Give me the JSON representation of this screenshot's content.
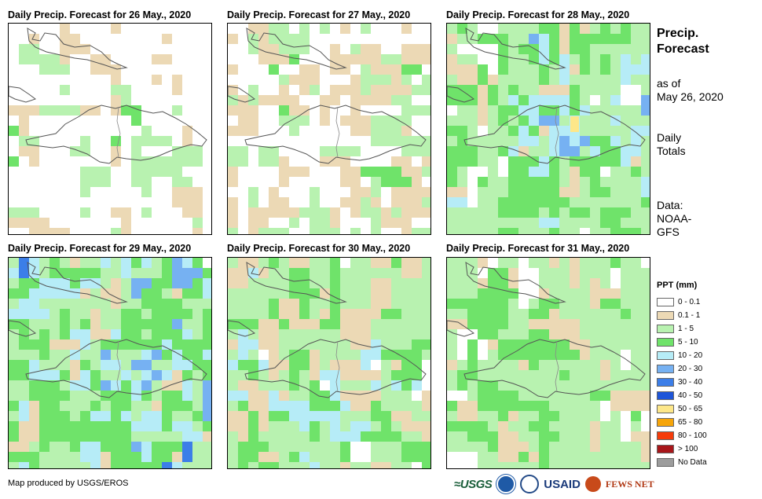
{
  "panels": [
    {
      "title": "Daily Precip. Forecast for 26 May., 2020",
      "seed": 11,
      "mix": {
        "white": 0.72,
        "tan": 0.14,
        "l5": 0.12,
        "l10": 0.02
      }
    },
    {
      "title": "Daily Precip. Forecast for 27 May., 2020",
      "seed": 23,
      "mix": {
        "white": 0.38,
        "tan": 0.3,
        "l5": 0.28,
        "l10": 0.04
      }
    },
    {
      "title": "Daily Precip. Forecast for 28 May., 2020",
      "seed": 37,
      "mix": {
        "white": 0.06,
        "tan": 0.06,
        "l5": 0.45,
        "l10": 0.35,
        "l20": 0.07,
        "l30": 0.01
      }
    },
    {
      "title": "Daily Precip. Forecast for 29 May., 2020",
      "seed": 41,
      "mix": {
        "white": 0.01,
        "tan": 0.08,
        "l5": 0.36,
        "l10": 0.28,
        "l20": 0.22,
        "l30": 0.04,
        "l40": 0.01
      }
    },
    {
      "title": "Daily Precip. Forecast for 30 May., 2020",
      "seed": 53,
      "mix": {
        "white": 0.04,
        "tan": 0.18,
        "l5": 0.46,
        "l10": 0.2,
        "l20": 0.12
      }
    },
    {
      "title": "Daily Precip. Forecast for 31 May., 2020",
      "seed": 67,
      "mix": {
        "white": 0.06,
        "tan": 0.16,
        "l5": 0.62,
        "l10": 0.16
      }
    }
  ],
  "side": {
    "title_line1": "Precip.",
    "title_line2": "Forecast",
    "asof_line1": "as of",
    "asof_line2": "May 26, 2020",
    "totals_line1": "Daily",
    "totals_line2": "Totals",
    "data_line1": "Data:",
    "data_line2": "NOAA-",
    "data_line3": "GFS"
  },
  "legend": {
    "title": "PPT (mm)",
    "items": [
      {
        "label": "0 - 0.1",
        "color": "#ffffff"
      },
      {
        "label": "0.1 - 1",
        "color": "#ecd9b5"
      },
      {
        "label": "1 - 5",
        "color": "#b8f2b0"
      },
      {
        "label": "5 - 10",
        "color": "#6fe36a"
      },
      {
        "label": "10 - 20",
        "color": "#b6ecf7"
      },
      {
        "label": "20 - 30",
        "color": "#76b1f2"
      },
      {
        "label": "30 - 40",
        "color": "#3c7ee8"
      },
      {
        "label": "40 - 50",
        "color": "#1e55d8"
      },
      {
        "label": "50 - 65",
        "color": "#fde789"
      },
      {
        "label": "65 - 80",
        "color": "#f6a50a"
      },
      {
        "label": "80 - 100",
        "color": "#f53c0b"
      },
      {
        "label": "> 100",
        "color": "#a8161a"
      },
      {
        "label": "No Data",
        "color": "#9c9c9c"
      }
    ]
  },
  "credit": "Map produced by USGS/EROS",
  "logos": {
    "usgs": "≈USGS",
    "usaid": "USAID",
    "fews": "FEWS NET"
  }
}
